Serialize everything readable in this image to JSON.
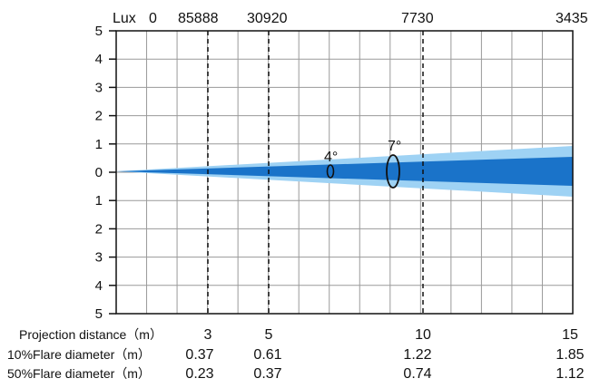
{
  "lux_header": {
    "label": "Lux",
    "values": [
      "0",
      "85888",
      "30920",
      "7730",
      "3435"
    ]
  },
  "vertical_axis": {
    "ticks": [
      "5",
      "4",
      "3",
      "2",
      "1",
      "0",
      "1",
      "2",
      "3",
      "4",
      "5"
    ]
  },
  "beams": [
    {
      "angle": "4°",
      "fill": "#1a73c9",
      "scope": "inner beam"
    },
    {
      "angle": "7°",
      "fill": "#9ed2f4",
      "scope": "outer beam"
    }
  ],
  "distance_row": {
    "label": "Projection distance（m）",
    "values": [
      "3",
      "5",
      "10",
      "15"
    ]
  },
  "flare10_row": {
    "label": "10%Flare diameter（m）",
    "values": [
      "0.37",
      "0.61",
      "1.22",
      "1.85"
    ]
  },
  "flare50_row": {
    "label": "50%Flare diameter（m）",
    "values": [
      "0.23",
      "0.37",
      "0.74",
      "1.12"
    ]
  },
  "colors": {
    "grid": "#9a9a9a",
    "axis": "#111111",
    "inner_beam": "#1a73c9",
    "outer_beam": "#9ed2f4"
  }
}
